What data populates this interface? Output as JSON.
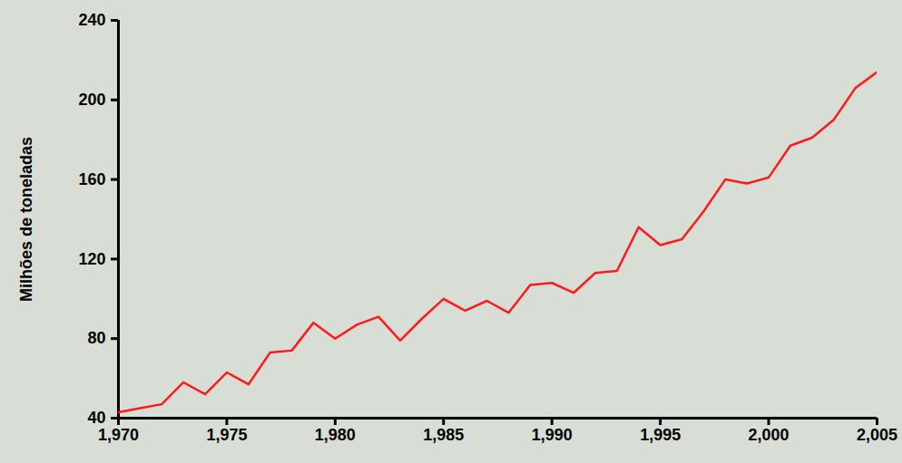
{
  "chart_data": {
    "type": "line",
    "y_label": "Milhões de toneladas",
    "x": [
      1970,
      1971,
      1972,
      1973,
      1974,
      1975,
      1976,
      1977,
      1978,
      1979,
      1980,
      1981,
      1982,
      1983,
      1984,
      1985,
      1986,
      1987,
      1988,
      1989,
      1990,
      1991,
      1992,
      1993,
      1994,
      1995,
      1996,
      1997,
      1998,
      1999,
      2000,
      2001,
      2002,
      2003,
      2004,
      2005
    ],
    "values": [
      43,
      45,
      47,
      58,
      52,
      63,
      57,
      73,
      74,
      88,
      80,
      87,
      91,
      79,
      90,
      100,
      94,
      99,
      93,
      107,
      108,
      103,
      113,
      114,
      136,
      127,
      130,
      144,
      160,
      158,
      161,
      177,
      181,
      190,
      206,
      214
    ],
    "color": "#ff1a1a",
    "xlim": [
      1970,
      2005
    ],
    "xticks": [
      1970,
      1975,
      1980,
      1985,
      1990,
      1995,
      2000,
      2005
    ],
    "ylim": [
      40,
      240
    ],
    "yticks": [
      40,
      80,
      120,
      160,
      200,
      240
    ],
    "grid": false
  }
}
